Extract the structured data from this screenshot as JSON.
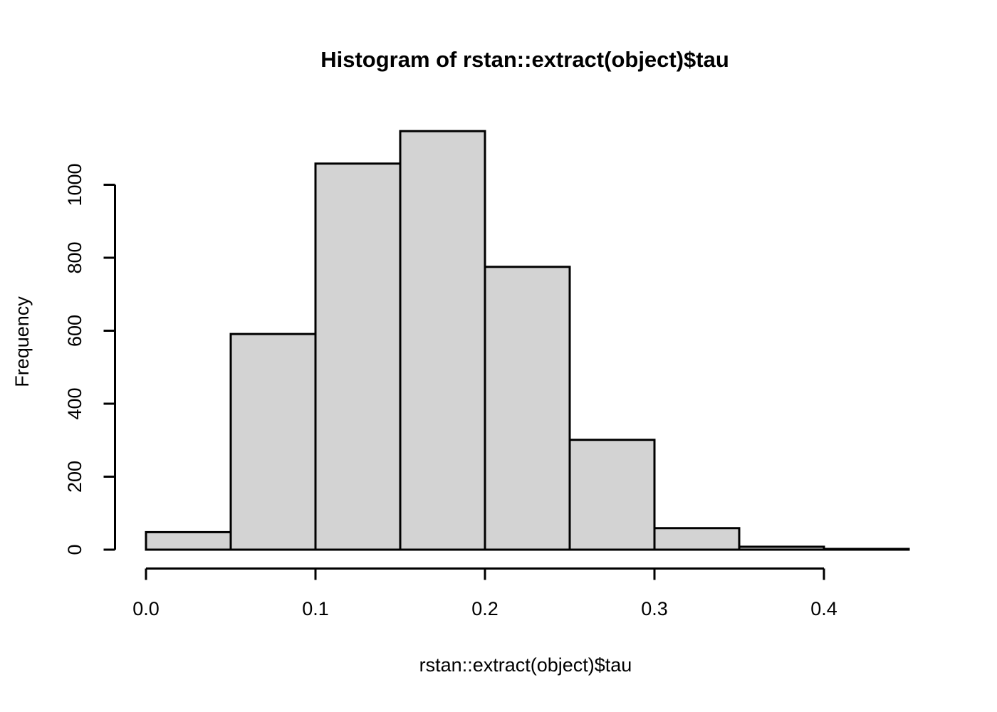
{
  "figure": {
    "background_color": "#ffffff",
    "text_color": "#000000"
  },
  "chart_data": {
    "type": "bar",
    "subtype": "histogram",
    "title": "Histogram of rstan::extract(object)$tau",
    "xlabel": "rstan::extract(object)$tau",
    "ylabel": "Frequency",
    "bin_edges": [
      0.0,
      0.05,
      0.1,
      0.15,
      0.2,
      0.25,
      0.3,
      0.35,
      0.4,
      0.45
    ],
    "counts": [
      48,
      591,
      1058,
      1147,
      775,
      301,
      59,
      8,
      2
    ],
    "x_tick_values": [
      0.0,
      0.1,
      0.2,
      0.3,
      0.4
    ],
    "x_tick_labels": [
      "0.0",
      "0.1",
      "0.2",
      "0.3",
      "0.4"
    ],
    "y_tick_values": [
      0,
      200,
      400,
      600,
      800,
      1000
    ],
    "y_tick_labels": [
      "0",
      "200",
      "400",
      "600",
      "800",
      "1000"
    ],
    "xlim": [
      0.0,
      0.45
    ],
    "ylim": [
      0,
      1150
    ],
    "grid": false,
    "legend": null,
    "bar_fill": "#D3D3D3",
    "bar_stroke": "#000000",
    "axis_color": "#000000"
  }
}
